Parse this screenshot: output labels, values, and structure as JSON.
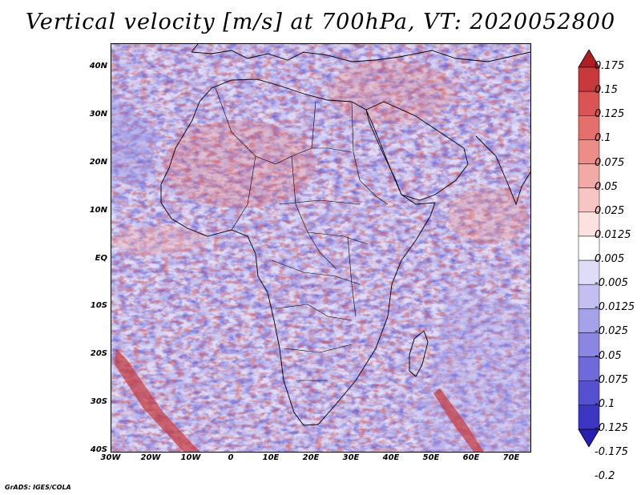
{
  "title": "Vertical velocity [m/s] at 700hPa, VT: 2020052800",
  "footer": "GrADS: IGES/COLA",
  "map": {
    "lat_labels": [
      "40N",
      "30N",
      "20N",
      "10N",
      "EQ",
      "10S",
      "20S",
      "30S",
      "40S"
    ],
    "lon_labels": [
      "30W",
      "20W",
      "10W",
      "0",
      "10E",
      "20E",
      "30E",
      "40E",
      "50E",
      "60E",
      "70E"
    ]
  },
  "colorbar": {
    "labels": [
      "0.175",
      "0.15",
      "0.125",
      "0.1",
      "0.075",
      "0.05",
      "0.025",
      "0.0125",
      "0.005",
      "-0.005",
      "-0.0125",
      "-0.025",
      "-0.05",
      "-0.075",
      "-0.1",
      "-0.125",
      "-0.175",
      "-0.2"
    ],
    "colors": [
      "#b01e24",
      "#c7393a",
      "#d95452",
      "#e46f6b",
      "#ec8d88",
      "#f2aaa6",
      "#f7c6c3",
      "#fbe1df",
      "#ffffff",
      "#dedcf7",
      "#c3c0f1",
      "#a6a2ea",
      "#8a86e2",
      "#6f6ad9",
      "#5550cf",
      "#3c37c3",
      "#2520b2"
    ]
  }
}
